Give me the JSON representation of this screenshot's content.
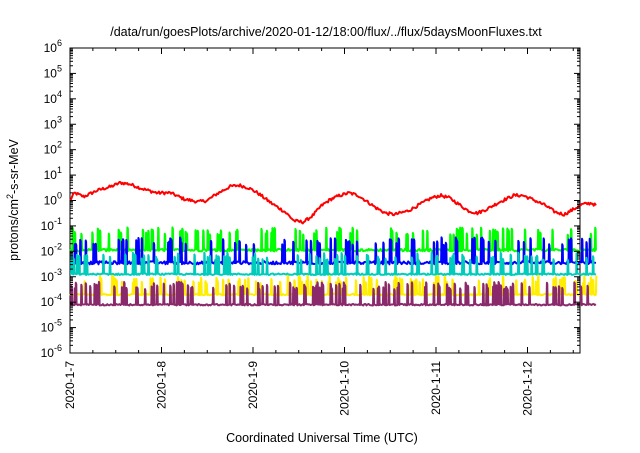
{
  "chart_data": {
    "type": "line",
    "title": "/data/run/goesPlots/archive/2020-01-12/18:00/flux/../flux/5daysMoonFluxes.txt",
    "xlabel": "Coordinated Universal Time (UTC)",
    "ylabel": "protons/cm2-s-sr-MeV",
    "ylabel_parts": {
      "base": "protons/cm",
      "sup": "2",
      "tail": "-s-sr-MeV"
    },
    "yscale": "log",
    "ylim_exponent": [
      -6,
      6
    ],
    "y_ticks": [
      {
        "base": "10",
        "exp": "-6"
      },
      {
        "base": "10",
        "exp": "-5"
      },
      {
        "base": "10",
        "exp": "-4"
      },
      {
        "base": "10",
        "exp": "-3"
      },
      {
        "base": "10",
        "exp": "-2"
      },
      {
        "base": "10",
        "exp": "-1"
      },
      {
        "base": "10",
        "exp": "0"
      },
      {
        "base": "10",
        "exp": "1"
      },
      {
        "base": "10",
        "exp": "2"
      },
      {
        "base": "10",
        "exp": "3"
      },
      {
        "base": "10",
        "exp": "4"
      },
      {
        "base": "10",
        "exp": "5"
      },
      {
        "base": "10",
        "exp": "6"
      }
    ],
    "x_ticks": [
      "2020-1-7",
      "2020-1-8",
      "2020-1-9",
      "2020-1-10",
      "2020-1-11",
      "2020-1-12"
    ],
    "xlim_days": [
      0,
      5.75
    ],
    "grid": false,
    "legend": "none",
    "series": [
      {
        "color": "#ff0000",
        "log10_points": [
          [
            0.0,
            0.0
          ],
          [
            0.05,
            0.3
          ],
          [
            0.15,
            0.15
          ],
          [
            0.3,
            0.4
          ],
          [
            0.45,
            0.55
          ],
          [
            0.55,
            0.7
          ],
          [
            0.65,
            0.65
          ],
          [
            0.8,
            0.45
          ],
          [
            0.95,
            0.3
          ],
          [
            1.1,
            0.3
          ],
          [
            1.25,
            0.05
          ],
          [
            1.4,
            -0.05
          ],
          [
            1.5,
            0.0
          ],
          [
            1.6,
            0.25
          ],
          [
            1.75,
            0.55
          ],
          [
            1.85,
            0.6
          ],
          [
            1.95,
            0.5
          ],
          [
            2.05,
            0.3
          ],
          [
            2.2,
            -0.1
          ],
          [
            2.35,
            -0.45
          ],
          [
            2.45,
            -0.8
          ],
          [
            2.55,
            -0.85
          ],
          [
            2.65,
            -0.6
          ],
          [
            2.75,
            -0.2
          ],
          [
            2.85,
            0.05
          ],
          [
            2.95,
            0.2
          ],
          [
            3.05,
            0.3
          ],
          [
            3.15,
            0.2
          ],
          [
            3.25,
            -0.05
          ],
          [
            3.35,
            -0.3
          ],
          [
            3.45,
            -0.5
          ],
          [
            3.55,
            -0.55
          ],
          [
            3.7,
            -0.4
          ],
          [
            3.85,
            -0.1
          ],
          [
            3.95,
            0.1
          ],
          [
            4.05,
            0.2
          ],
          [
            4.15,
            0.1
          ],
          [
            4.25,
            -0.15
          ],
          [
            4.35,
            -0.4
          ],
          [
            4.45,
            -0.5
          ],
          [
            4.55,
            -0.35
          ],
          [
            4.7,
            -0.05
          ],
          [
            4.85,
            0.2
          ],
          [
            4.95,
            0.2
          ],
          [
            5.05,
            0.05
          ],
          [
            5.2,
            -0.2
          ],
          [
            5.3,
            -0.45
          ],
          [
            5.4,
            -0.55
          ],
          [
            5.5,
            -0.35
          ],
          [
            5.6,
            -0.15
          ],
          [
            5.7,
            -0.1
          ],
          [
            5.75,
            -0.2
          ]
        ],
        "wiggle": 0.12
      },
      {
        "color": "#00ff00",
        "baseline_log10": -1.95,
        "spike_log10": -1.2,
        "spikes_per_day": 14,
        "noise": 0.1
      },
      {
        "color": "#0000ff",
        "baseline_log10": -2.45,
        "spike_log10": -1.6,
        "spikes_per_day": 12,
        "noise": 0.12
      },
      {
        "color": "#00ccbb",
        "baseline_log10": -2.9,
        "spike_log10": -2.2,
        "spikes_per_day": 16,
        "noise": 0.06
      },
      {
        "color": "#ffee00",
        "baseline_log10": -3.7,
        "spike_log10": -3.1,
        "spikes_per_day": 18,
        "noise": 0.06
      },
      {
        "color": "#8b2a6b",
        "baseline_log10": -4.1,
        "spike_log10": -3.35,
        "spikes_per_day": 18,
        "noise": 0.06
      }
    ]
  }
}
